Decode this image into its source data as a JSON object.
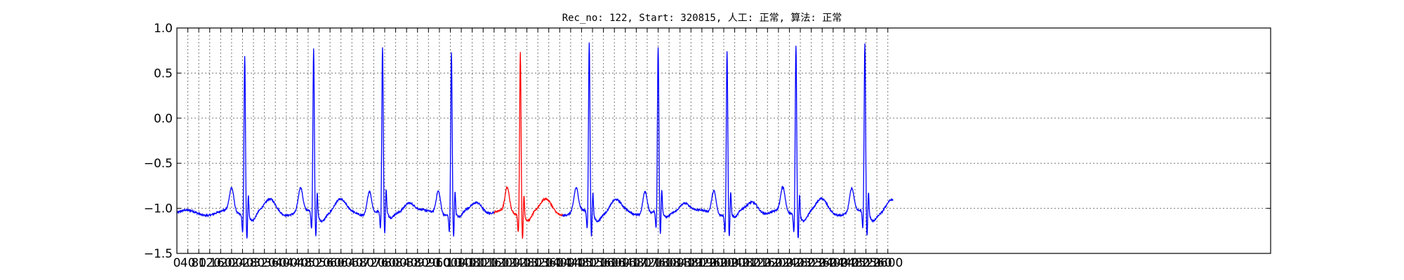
{
  "chart_data": {
    "type": "line",
    "title": "Rec_no: 122, Start: 320815, 人工: 正常, 算法: 正常",
    "xlabel": "",
    "ylabel": "",
    "xlim": [
      0,
      4000
    ],
    "ylim": [
      -1.5,
      1.0
    ],
    "grid": true,
    "y_ticks": [
      "1.0",
      "0.5",
      "0.0",
      "−0.5",
      "−1.0",
      "−1.5"
    ],
    "y_tick_values": [
      1.0,
      0.5,
      0.0,
      -0.5,
      -1.0,
      -1.5
    ],
    "x_tick_step": 40,
    "x_tick_max": 2600,
    "x_tick_labels": [
      "0",
      "40",
      "80",
      "120",
      "160",
      "200",
      "240",
      "280",
      "320",
      "360",
      "400",
      "440",
      "480",
      "520",
      "560",
      "600",
      "640",
      "680",
      "720",
      "760",
      "800",
      "840",
      "880",
      "920",
      "960",
      "1000",
      "1040",
      "1080",
      "1120",
      "1160",
      "1200",
      "1240",
      "1280",
      "1320",
      "1360",
      "1400",
      "1440",
      "1480",
      "1520",
      "1560",
      "1600",
      "1640",
      "1680",
      "1720",
      "1760",
      "1800",
      "1840",
      "1880",
      "1920",
      "1960",
      "2000",
      "2040",
      "2080",
      "2120",
      "2160",
      "2200",
      "2240",
      "2280",
      "2320",
      "2360",
      "2400",
      "2440",
      "2480",
      "2520",
      "2560",
      "2600"
    ],
    "signal_end_x": 2620,
    "series": [
      {
        "color": "#0000ff",
        "beat_peaks_x": [
          248,
          500,
          752,
          1004,
          1508,
          1760,
          2012,
          2264,
          2516
        ],
        "beat_peak_values": [
          0.73,
          0.77,
          0.77,
          0.75,
          0.84,
          0.77,
          0.77,
          0.84,
          0.82
        ],
        "baseline": -1.05
      },
      {
        "color": "#ff0000",
        "segment_x": [
          1160,
          1410
        ],
        "beat_peaks_x": [
          1256
        ],
        "beat_peak_values": [
          0.76
        ],
        "baseline": -1.05
      }
    ]
  }
}
